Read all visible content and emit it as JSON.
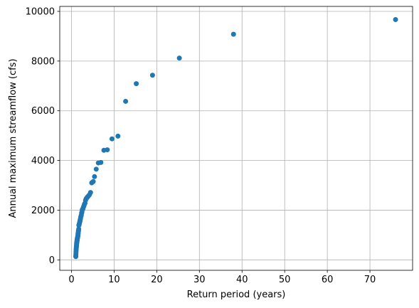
{
  "chart_data": {
    "type": "scatter",
    "xlabel": "Return period (years)",
    "ylabel": "Annual maximum streamflow (cfs)",
    "xlim": [
      -2.75,
      80
    ],
    "ylim": [
      -420,
      10200
    ],
    "xticks": [
      0,
      10,
      20,
      30,
      40,
      50,
      60,
      70
    ],
    "yticks": [
      0,
      2000,
      4000,
      6000,
      8000,
      10000
    ],
    "grid": true,
    "series": [
      {
        "color": "#1f77b4",
        "points": [
          [
            76.0,
            9670
          ],
          [
            38.0,
            9080
          ],
          [
            25.3,
            8120
          ],
          [
            19.0,
            7430
          ],
          [
            15.2,
            7090
          ],
          [
            12.7,
            6380
          ],
          [
            10.9,
            4980
          ],
          [
            9.5,
            4870
          ],
          [
            8.4,
            4430
          ],
          [
            7.6,
            4410
          ],
          [
            6.9,
            3920
          ],
          [
            6.3,
            3900
          ],
          [
            5.8,
            3650
          ],
          [
            5.4,
            3350
          ],
          [
            5.1,
            3150
          ],
          [
            4.75,
            3100
          ],
          [
            4.47,
            2710
          ],
          [
            4.22,
            2620
          ],
          [
            4.0,
            2580
          ],
          [
            3.8,
            2540
          ],
          [
            3.62,
            2500
          ],
          [
            3.45,
            2460
          ],
          [
            3.3,
            2400
          ],
          [
            3.17,
            2280
          ],
          [
            3.04,
            2240
          ],
          [
            2.92,
            2170
          ],
          [
            2.81,
            2130
          ],
          [
            2.71,
            2070
          ],
          [
            2.62,
            2040
          ],
          [
            2.53,
            2010
          ],
          [
            2.45,
            1920
          ],
          [
            2.38,
            1880
          ],
          [
            2.3,
            1800
          ],
          [
            2.24,
            1760
          ],
          [
            2.17,
            1720
          ],
          [
            2.11,
            1660
          ],
          [
            2.05,
            1610
          ],
          [
            2.0,
            1560
          ],
          [
            1.95,
            1530
          ],
          [
            1.9,
            1500
          ],
          [
            1.85,
            1460
          ],
          [
            1.81,
            1430
          ],
          [
            1.77,
            1400
          ],
          [
            1.73,
            1390
          ],
          [
            1.69,
            1240
          ],
          [
            1.65,
            1180
          ],
          [
            1.62,
            1150
          ],
          [
            1.58,
            1080
          ],
          [
            1.55,
            1050
          ],
          [
            1.52,
            1000
          ],
          [
            1.49,
            950
          ],
          [
            1.46,
            930
          ],
          [
            1.43,
            900
          ],
          [
            1.41,
            880
          ],
          [
            1.38,
            860
          ],
          [
            1.36,
            840
          ],
          [
            1.33,
            810
          ],
          [
            1.31,
            780
          ],
          [
            1.29,
            750
          ],
          [
            1.27,
            720
          ],
          [
            1.25,
            700
          ],
          [
            1.23,
            680
          ],
          [
            1.21,
            650
          ],
          [
            1.19,
            610
          ],
          [
            1.17,
            570
          ],
          [
            1.15,
            530
          ],
          [
            1.13,
            490
          ],
          [
            1.11,
            440
          ],
          [
            1.09,
            400
          ],
          [
            1.07,
            340
          ],
          [
            1.05,
            260
          ],
          [
            1.03,
            180
          ],
          [
            1.01,
            130
          ]
        ]
      }
    ]
  }
}
